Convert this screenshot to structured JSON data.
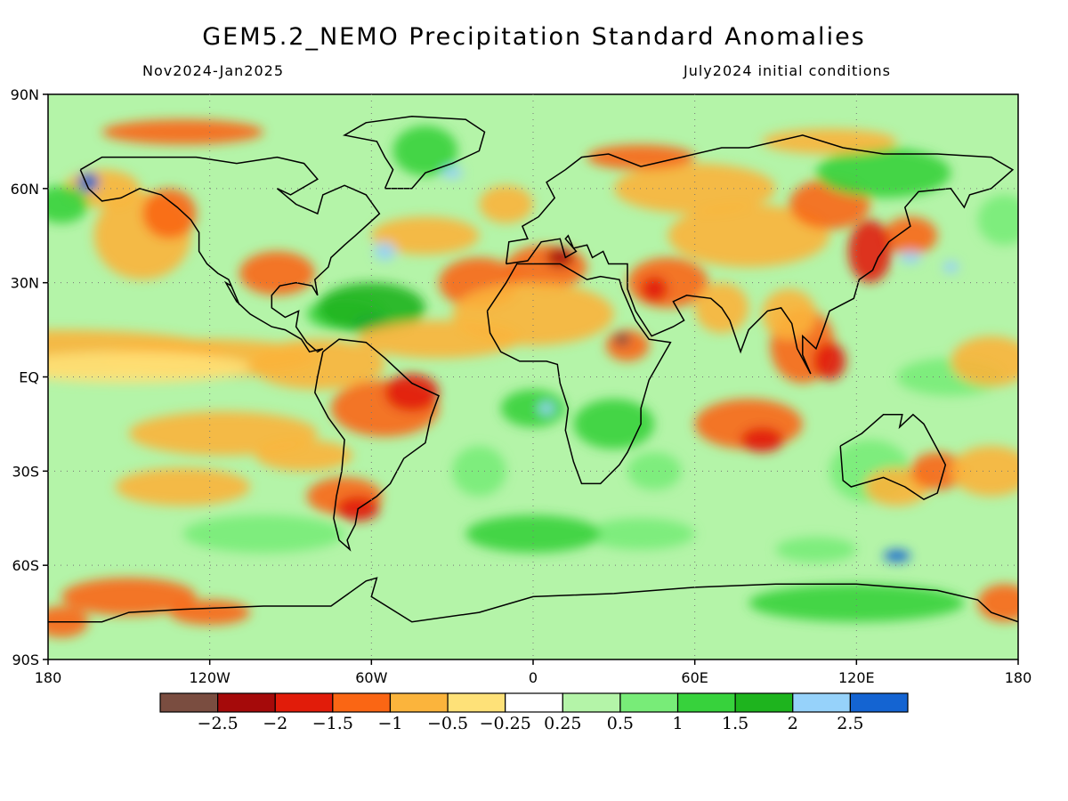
{
  "title": "GEM5.2_NEMO Precipitation Standard Anomalies",
  "period": "Nov2024-Jan2025",
  "initial_conditions": "July2024 initial conditions",
  "map": {
    "lon_range": [
      -180,
      180
    ],
    "lat_range": [
      -90,
      90
    ],
    "lat_ticks": [
      {
        "value": 90,
        "label": "90N"
      },
      {
        "value": 60,
        "label": "60N"
      },
      {
        "value": 30,
        "label": "30N"
      },
      {
        "value": 0,
        "label": "EQ"
      },
      {
        "value": -30,
        "label": "30S"
      },
      {
        "value": -60,
        "label": "60S"
      },
      {
        "value": -90,
        "label": "90S"
      }
    ],
    "lon_ticks": [
      {
        "value": -180,
        "label": "180"
      },
      {
        "value": -120,
        "label": "120W"
      },
      {
        "value": -60,
        "label": "60W"
      },
      {
        "value": 0,
        "label": "0"
      },
      {
        "value": 60,
        "label": "60E"
      },
      {
        "value": 120,
        "label": "120E"
      },
      {
        "value": 180,
        "label": "180"
      }
    ]
  },
  "colorbar": {
    "colors": [
      "#7a4d40",
      "#a50a0a",
      "#e11c0a",
      "#fa6614",
      "#fbb43c",
      "#fee178",
      "#ffffff",
      "#b4f4a8",
      "#78ec78",
      "#37d23c",
      "#1eb41e",
      "#96d2fa",
      "#1464d2"
    ],
    "labels": [
      "−2.5",
      "−2",
      "−1.5",
      "−1",
      "−0.5",
      "−0.25",
      "0.25",
      "0.5",
      "1",
      "1.5",
      "2",
      "2.5"
    ]
  }
}
